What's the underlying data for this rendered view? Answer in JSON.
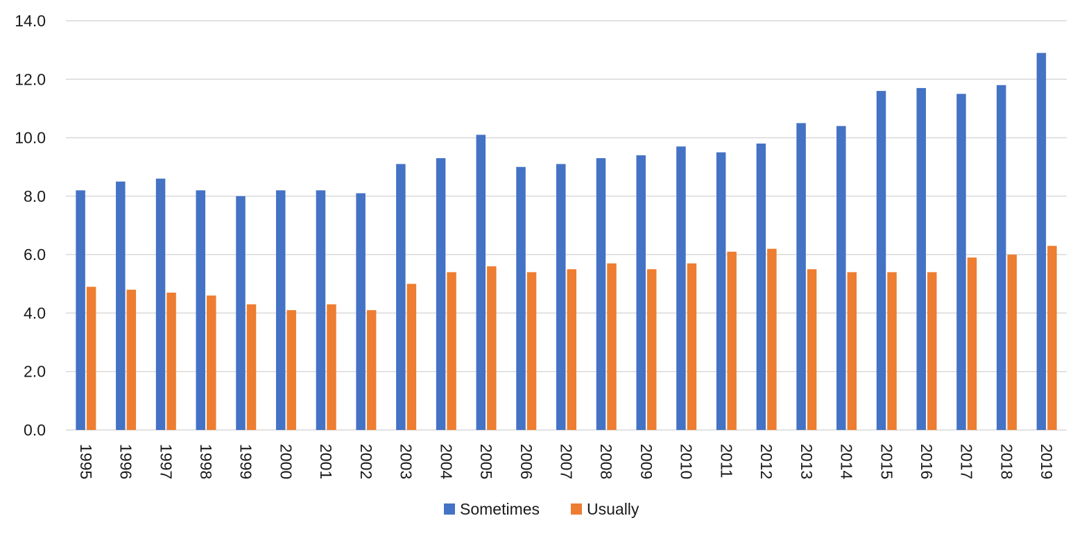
{
  "chart_data": {
    "type": "bar",
    "title": "",
    "xlabel": "",
    "ylabel": "",
    "ylim": [
      0,
      14
    ],
    "yticks": [
      "0.0",
      "2.0",
      "4.0",
      "6.0",
      "8.0",
      "10.0",
      "12.0",
      "14.0"
    ],
    "ytick_values": [
      0,
      2,
      4,
      6,
      8,
      10,
      12,
      14
    ],
    "grid": true,
    "legend_position": "bottom",
    "categories": [
      "1995",
      "1996",
      "1997",
      "1998",
      "1999",
      "2000",
      "2001",
      "2002",
      "2003",
      "2004",
      "2005",
      "2006",
      "2007",
      "2008",
      "2009",
      "2010",
      "2011",
      "2012",
      "2013",
      "2014",
      "2015",
      "2016",
      "2017",
      "2018",
      "2019"
    ],
    "series": [
      {
        "name": "Sometimes",
        "color": "#4472C4",
        "values": [
          8.2,
          8.5,
          8.6,
          8.2,
          8.0,
          8.2,
          8.2,
          8.1,
          9.1,
          9.3,
          10.1,
          9.0,
          9.1,
          9.3,
          9.4,
          9.7,
          9.5,
          9.8,
          10.5,
          10.4,
          11.6,
          11.7,
          11.5,
          11.8,
          12.9
        ]
      },
      {
        "name": "Usually",
        "color": "#ED7D31",
        "values": [
          4.9,
          4.8,
          4.7,
          4.6,
          4.3,
          4.1,
          4.3,
          4.1,
          5.0,
          5.4,
          5.6,
          5.4,
          5.5,
          5.7,
          5.5,
          5.7,
          6.1,
          6.2,
          5.5,
          5.4,
          5.4,
          5.4,
          5.9,
          6.0,
          6.3
        ]
      }
    ]
  }
}
